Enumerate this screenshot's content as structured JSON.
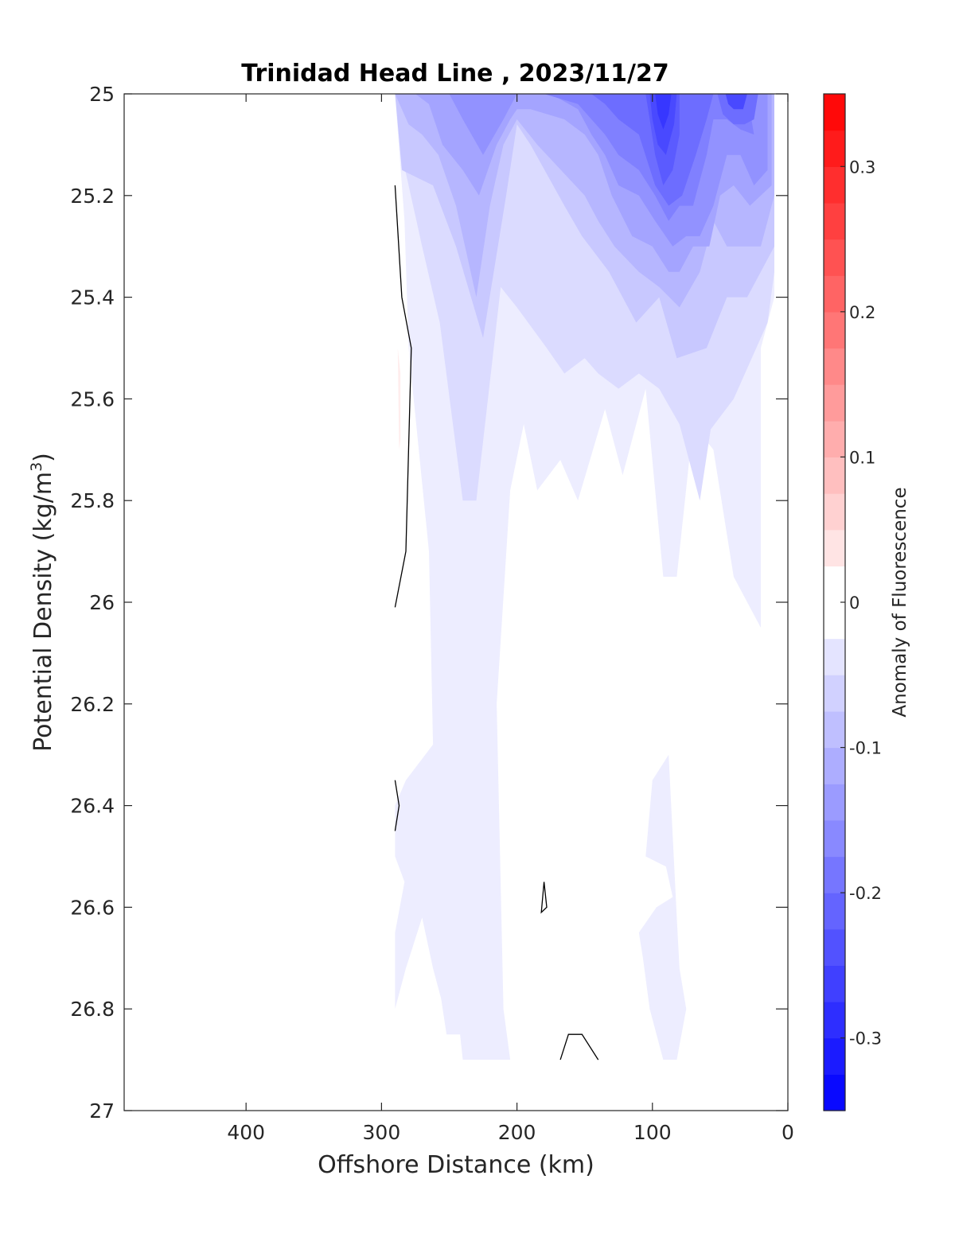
{
  "chart_data": {
    "type": "heatmap",
    "subtype": "filled-contour",
    "title": "Trinidad Head Line , 2023/11/27",
    "xlabel": "Offshore Distance (km)",
    "ylabel_main": "Potential Density (kg/m",
    "ylabel_sup": "3",
    "ylabel_close": ")",
    "colorbar_label": "Anomaly of Fluorescence",
    "x_axis": {
      "reversed": true,
      "xlim": [
        490,
        0
      ],
      "ticks": [
        400,
        300,
        200,
        100,
        0
      ]
    },
    "y_axis": {
      "reversed": true,
      "ylim": [
        25,
        27
      ],
      "ticks": [
        25,
        25.2,
        25.4,
        25.6,
        25.8,
        26,
        26.2,
        26.4,
        26.6,
        26.8,
        27
      ]
    },
    "x_tick_labels": [
      "400",
      "300",
      "200",
      "100",
      "0"
    ],
    "y_tick_labels": [
      "25",
      "25.2",
      "25.4",
      "25.6",
      "25.8",
      "26",
      "26.2",
      "26.4",
      "26.6",
      "26.8",
      "27"
    ],
    "colorbar": {
      "clim": [
        -0.35,
        0.35
      ],
      "level_step": 0.025,
      "tick_values": [
        0.3,
        0.2,
        0.1,
        0,
        -0.1,
        -0.2,
        -0.3
      ],
      "tick_labels": [
        "0.3",
        "0.2",
        "0.1",
        "0",
        "-0.1",
        "-0.2",
        "-0.3"
      ],
      "colormap": "blue-white-red",
      "negative_color": "#0000ff",
      "zero_color": "#ffffff",
      "positive_color": "#ff0000"
    },
    "data_extent_x": [
      290,
      10
    ],
    "data_extent_y": [
      25,
      26.9
    ],
    "grid": false,
    "regions": [
      {
        "level": -0.025,
        "points": [
          [
            290,
            25
          ],
          [
            10,
            25
          ],
          [
            10,
            25.4
          ],
          [
            20,
            25.5
          ],
          [
            20,
            26.05
          ],
          [
            40,
            25.95
          ],
          [
            55,
            25.7
          ],
          [
            70,
            25.65
          ],
          [
            82,
            25.95
          ],
          [
            92,
            25.95
          ],
          [
            105,
            25.58
          ],
          [
            122,
            25.75
          ],
          [
            135,
            25.62
          ],
          [
            155,
            25.8
          ],
          [
            168,
            25.72
          ],
          [
            185,
            25.78
          ],
          [
            195,
            25.65
          ],
          [
            205,
            25.78
          ],
          [
            215,
            26.2
          ],
          [
            210,
            26.8
          ],
          [
            205,
            26.9
          ],
          [
            240,
            26.9
          ],
          [
            242,
            26.85
          ],
          [
            252,
            26.85
          ],
          [
            256,
            26.78
          ],
          [
            262,
            26.72
          ],
          [
            270,
            26.62
          ],
          [
            282,
            26.72
          ],
          [
            290,
            26.8
          ],
          [
            290,
            26.65
          ],
          [
            283,
            26.55
          ],
          [
            290,
            26.5
          ],
          [
            290,
            26.4
          ],
          [
            282,
            26.35
          ],
          [
            262,
            26.28
          ],
          [
            265,
            25.9
          ],
          [
            280,
            25.5
          ],
          [
            283,
            25.25
          ]
        ]
      },
      {
        "level": -0.025,
        "points": [
          [
            80,
            26.72
          ],
          [
            75,
            26.8
          ],
          [
            82,
            26.9
          ],
          [
            92,
            26.9
          ],
          [
            102,
            26.8
          ],
          [
            107,
            26.7
          ],
          [
            110,
            26.65
          ],
          [
            97,
            26.6
          ],
          [
            85,
            26.58
          ],
          [
            90,
            26.52
          ],
          [
            105,
            26.5
          ],
          [
            100,
            26.35
          ],
          [
            88,
            26.3
          ],
          [
            82,
            26.62
          ]
        ]
      },
      {
        "level": -0.05,
        "points": [
          [
            290,
            25
          ],
          [
            10,
            25
          ],
          [
            10,
            25.35
          ],
          [
            15,
            25.45
          ],
          [
            40,
            25.6
          ],
          [
            57,
            25.66
          ],
          [
            65,
            25.8
          ],
          [
            80,
            25.65
          ],
          [
            95,
            25.58
          ],
          [
            110,
            25.55
          ],
          [
            125,
            25.58
          ],
          [
            140,
            25.55
          ],
          [
            150,
            25.52
          ],
          [
            165,
            25.55
          ],
          [
            178,
            25.5
          ],
          [
            200,
            25.42
          ],
          [
            212,
            25.38
          ],
          [
            230,
            25.8
          ],
          [
            240,
            25.8
          ],
          [
            257,
            25.45
          ],
          [
            270,
            25.3
          ],
          [
            285,
            25.12
          ]
        ]
      },
      {
        "level": -0.075,
        "points": [
          [
            290,
            25
          ],
          [
            10,
            25
          ],
          [
            10,
            25.3
          ],
          [
            30,
            25.4
          ],
          [
            45,
            25.4
          ],
          [
            60,
            25.5
          ],
          [
            82,
            25.52
          ],
          [
            95,
            25.4
          ],
          [
            112,
            25.45
          ],
          [
            132,
            25.35
          ],
          [
            152,
            25.28
          ],
          [
            165,
            25.22
          ],
          [
            190,
            25.1
          ],
          [
            200,
            25.06
          ],
          [
            208,
            25.2
          ],
          [
            225,
            25.48
          ],
          [
            245,
            25.3
          ],
          [
            262,
            25.18
          ],
          [
            285,
            25.15
          ]
        ]
      },
      {
        "level": -0.1,
        "points": [
          [
            290,
            25
          ],
          [
            10,
            25
          ],
          [
            10,
            25.2
          ],
          [
            20,
            25.3
          ],
          [
            45,
            25.3
          ],
          [
            55,
            25.25
          ],
          [
            65,
            25.35
          ],
          [
            80,
            25.42
          ],
          [
            95,
            25.38
          ],
          [
            110,
            25.35
          ],
          [
            128,
            25.3
          ],
          [
            140,
            25.25
          ],
          [
            150,
            25.2
          ],
          [
            185,
            25.1
          ],
          [
            200,
            25.05
          ],
          [
            210,
            25.1
          ],
          [
            220,
            25.22
          ],
          [
            230,
            25.4
          ],
          [
            245,
            25.22
          ],
          [
            258,
            25.12
          ],
          [
            270,
            25.08
          ],
          [
            280,
            25.06
          ]
        ]
      },
      {
        "level": -0.125,
        "points": [
          [
            275,
            25
          ],
          [
            12,
            25
          ],
          [
            12,
            25.18
          ],
          [
            28,
            25.22
          ],
          [
            40,
            25.18
          ],
          [
            50,
            25.2
          ],
          [
            58,
            25.3
          ],
          [
            70,
            25.3
          ],
          [
            80,
            25.35
          ],
          [
            88,
            25.35
          ],
          [
            100,
            25.3
          ],
          [
            115,
            25.28
          ],
          [
            130,
            25.2
          ],
          [
            140,
            25.12
          ],
          [
            150,
            25.08
          ],
          [
            165,
            25.05
          ],
          [
            190,
            25.03
          ],
          [
            200,
            25.03
          ],
          [
            205,
            25.05
          ],
          [
            215,
            25.1
          ],
          [
            228,
            25.2
          ],
          [
            240,
            25.15
          ],
          [
            255,
            25.1
          ],
          [
            265,
            25.02
          ]
        ]
      },
      {
        "level": -0.15,
        "points": [
          [
            250,
            25
          ],
          [
            15,
            25
          ],
          [
            15,
            25.15
          ],
          [
            25,
            25.18
          ],
          [
            35,
            25.12
          ],
          [
            45,
            25.12
          ],
          [
            55,
            25.22
          ],
          [
            65,
            25.28
          ],
          [
            75,
            25.28
          ],
          [
            85,
            25.3
          ],
          [
            98,
            25.25
          ],
          [
            110,
            25.2
          ],
          [
            125,
            25.18
          ],
          [
            135,
            25.12
          ],
          [
            145,
            25.08
          ],
          [
            155,
            25.03
          ],
          [
            175,
            25
          ],
          [
            200,
            25
          ],
          [
            210,
            25.05
          ],
          [
            225,
            25.12
          ],
          [
            240,
            25.05
          ]
        ]
      },
      {
        "level": -0.175,
        "points": [
          [
            180,
            25
          ],
          [
            30,
            25
          ],
          [
            25,
            25.08
          ],
          [
            35,
            25.07
          ],
          [
            45,
            25.05
          ],
          [
            55,
            25.05
          ],
          [
            60,
            25.12
          ],
          [
            70,
            25.22
          ],
          [
            80,
            25.22
          ],
          [
            88,
            25.25
          ],
          [
            98,
            25.2
          ],
          [
            110,
            25.15
          ],
          [
            125,
            25.12
          ],
          [
            135,
            25.08
          ],
          [
            145,
            25.05
          ],
          [
            155,
            25.02
          ]
        ]
      },
      {
        "level": -0.2,
        "points": [
          [
            145,
            25
          ],
          [
            55,
            25
          ],
          [
            60,
            25.05
          ],
          [
            68,
            25.12
          ],
          [
            78,
            25.2
          ],
          [
            88,
            25.22
          ],
          [
            98,
            25.18
          ],
          [
            110,
            25.08
          ],
          [
            125,
            25.05
          ],
          [
            135,
            25.02
          ]
        ]
      },
      {
        "level": -0.225,
        "points": [
          [
            105,
            25
          ],
          [
            80,
            25
          ],
          [
            80,
            25.08
          ],
          [
            85,
            25.15
          ],
          [
            92,
            25.18
          ],
          [
            98,
            25.12
          ],
          [
            102,
            25.05
          ]
        ]
      },
      {
        "level": -0.25,
        "points": [
          [
            102,
            25
          ],
          [
            82,
            25
          ],
          [
            84,
            25.06
          ],
          [
            90,
            25.12
          ],
          [
            96,
            25.1
          ],
          [
            100,
            25.05
          ]
        ]
      },
      {
        "level": -0.2,
        "points": [
          [
            52,
            25
          ],
          [
            22,
            25
          ],
          [
            25,
            25.05
          ],
          [
            32,
            25.06
          ],
          [
            40,
            25.06
          ],
          [
            48,
            25.04
          ]
        ]
      },
      {
        "level": -0.25,
        "points": [
          [
            46,
            25
          ],
          [
            30,
            25
          ],
          [
            33,
            25.03
          ],
          [
            40,
            25.03
          ],
          [
            44,
            25.02
          ]
        ]
      },
      {
        "level": -0.275,
        "points": [
          [
            98,
            25
          ],
          [
            86,
            25
          ],
          [
            88,
            25.04
          ],
          [
            92,
            25.07
          ],
          [
            96,
            25.04
          ]
        ]
      },
      {
        "level": 0.025,
        "points": [
          [
            288,
            25.5
          ],
          [
            287,
            25.7
          ],
          [
            286,
            25.68
          ],
          [
            286,
            25.55
          ]
        ]
      }
    ],
    "zero_contours": [
      [
        [
          290,
          25.18
        ],
        [
          285,
          25.4
        ],
        [
          278,
          25.5
        ],
        [
          282,
          25.9
        ],
        [
          290,
          26.01
        ]
      ],
      [
        [
          290,
          26.35
        ],
        [
          287,
          26.4
        ],
        [
          290,
          26.45
        ]
      ],
      [
        [
          180,
          26.55
        ],
        [
          178,
          26.6
        ],
        [
          182,
          26.61
        ],
        [
          180,
          26.55
        ]
      ],
      [
        [
          168,
          26.9
        ],
        [
          162,
          26.85
        ],
        [
          152,
          26.85
        ],
        [
          140,
          26.9
        ]
      ]
    ]
  }
}
